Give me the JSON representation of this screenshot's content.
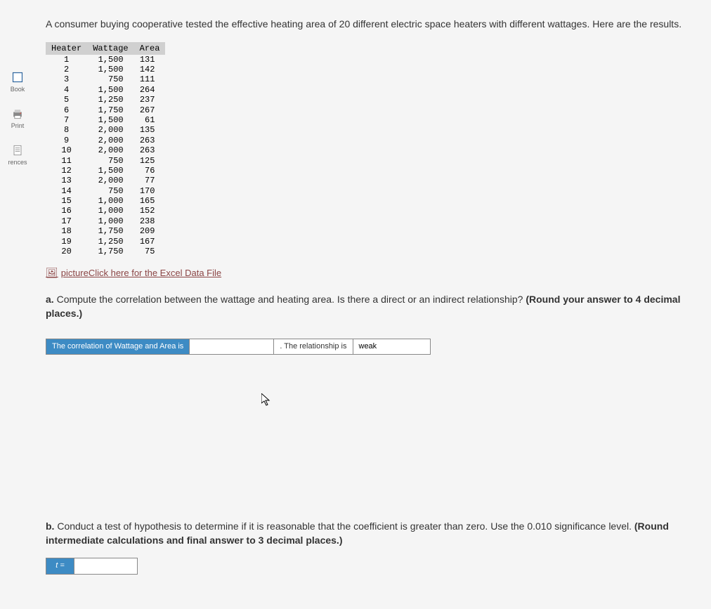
{
  "sidebar": {
    "items": [
      {
        "label": "Book",
        "icon": "book"
      },
      {
        "label": "Print",
        "icon": "print"
      },
      {
        "label": "rences",
        "icon": "references"
      }
    ]
  },
  "intro": "A consumer buying cooperative tested the effective heating area of 20 different electric space heaters with different wattages. Here are the results.",
  "table": {
    "columns": [
      "Heater",
      "Wattage",
      "Area"
    ],
    "rows": [
      [
        "1",
        "1,500",
        "131"
      ],
      [
        "2",
        "1,500",
        "142"
      ],
      [
        "3",
        "750",
        "111"
      ],
      [
        "4",
        "1,500",
        "264"
      ],
      [
        "5",
        "1,250",
        "237"
      ],
      [
        "6",
        "1,750",
        "267"
      ],
      [
        "7",
        "1,500",
        "61"
      ],
      [
        "8",
        "2,000",
        "135"
      ],
      [
        "9",
        "2,000",
        "263"
      ],
      [
        "10",
        "2,000",
        "263"
      ],
      [
        "11",
        "750",
        "125"
      ],
      [
        "12",
        "1,500",
        "76"
      ],
      [
        "13",
        "2,000",
        "77"
      ],
      [
        "14",
        "750",
        "170"
      ],
      [
        "15",
        "1,000",
        "165"
      ],
      [
        "16",
        "1,000",
        "152"
      ],
      [
        "17",
        "1,000",
        "238"
      ],
      [
        "18",
        "1,750",
        "209"
      ],
      [
        "19",
        "1,250",
        "167"
      ],
      [
        "20",
        "1,750",
        "75"
      ]
    ]
  },
  "excel_link": {
    "icon_label": "picture",
    "text": "Click here for the Excel Data File"
  },
  "question_a": {
    "prefix": "a.",
    "text": " Compute the correlation between the wattage and heating area. Is there a direct or an indirect relationship? ",
    "bold": "(Round your answer to 4 decimal places.)"
  },
  "answer_a": {
    "correlation_label": "The correlation of Wattage and Area is",
    "correlation_value": "",
    "relationship_label": ". The relationship is",
    "relationship_value": "weak"
  },
  "question_b": {
    "prefix": "b.",
    "text": " Conduct a test of hypothesis to determine if it is reasonable that the coefficient is greater than zero. Use the 0.010 significance level. ",
    "bold": "(Round intermediate calculations and final answer to 3 decimal places.)"
  },
  "answer_b": {
    "t_label": "t =",
    "t_value": ""
  },
  "colors": {
    "header_bg": "#d0d0d0",
    "label_bg": "#3d8bc4",
    "label_fg": "#ffffff",
    "link_color": "#8b4545"
  }
}
